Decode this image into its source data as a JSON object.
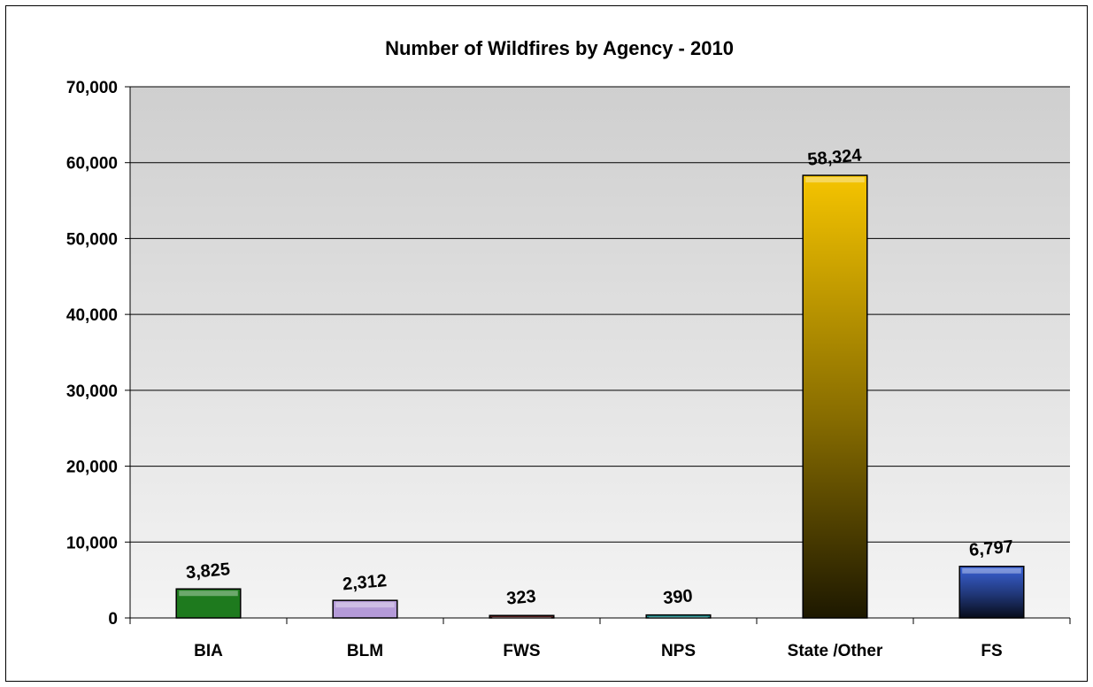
{
  "chart_data": {
    "type": "bar",
    "title": "Number of Wildfires by Agency -  2010",
    "xlabel": "",
    "ylabel": "",
    "categories": [
      "BIA",
      "BLM",
      "FWS",
      "NPS",
      "State /Other",
      "FS"
    ],
    "values": [
      3825,
      2312,
      323,
      390,
      58324,
      6797
    ],
    "data_labels": [
      "3,825",
      "2,312",
      "323",
      "390",
      "58,324",
      "6,797"
    ],
    "ylim": [
      0,
      70000
    ],
    "yticks": [
      0,
      10000,
      20000,
      30000,
      40000,
      50000,
      60000,
      70000
    ],
    "ytick_labels": [
      "0",
      "10,000",
      "20,000",
      "30,000",
      "40,000",
      "50,000",
      "60,000",
      "70,000"
    ],
    "grid": true,
    "legend": "none",
    "bar_colors": [
      "#1e7a1e",
      "#b49ad8",
      "#5a1f1f",
      "#1f8f8f",
      "#f5c400",
      "#3a62d6"
    ],
    "plot_background": "#d4d4d4"
  }
}
